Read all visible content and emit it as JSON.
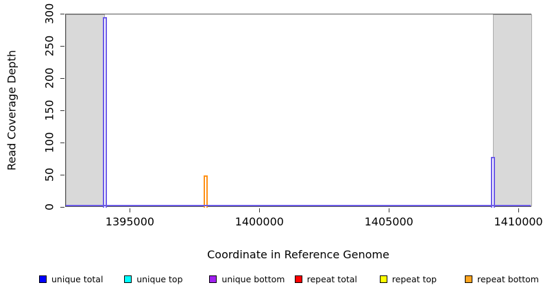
{
  "chart_data": {
    "type": "line",
    "title": "",
    "xlabel": "Coordinate in Reference Genome",
    "ylabel": "Read Coverage Depth",
    "xlim": [
      1392500,
      1410500
    ],
    "ylim": [
      0,
      300
    ],
    "xticks": [
      1395000,
      1400000,
      1405000,
      1410000
    ],
    "yticks": [
      0,
      50,
      100,
      150,
      200,
      250,
      300
    ],
    "grid": false,
    "legend_position": "bottom",
    "plot_border_color": "#555555",
    "shaded_regions": [
      {
        "name": "masked-region-left",
        "x_start": 1392500,
        "x_end": 1394000,
        "fill": "#D9D9D9",
        "border": "#ABABAB"
      },
      {
        "name": "masked-region-right",
        "x_start": 1409000,
        "x_end": 1410500,
        "fill": "#D9D9D9",
        "border": "#ABABAB"
      }
    ],
    "baseline": {
      "value": 0,
      "color": "#6C5BE8"
    },
    "spikes": [
      {
        "x": 1394000,
        "value": 296,
        "series": "unique coverage",
        "color": "#6C5BE8"
      },
      {
        "x": 1397900,
        "value": 50,
        "series": "repeat bottom coverage",
        "color": "#FF9015"
      },
      {
        "x": 1409000,
        "value": 79,
        "series": "unique coverage",
        "color": "#6C5BE8"
      }
    ],
    "legend": [
      {
        "label": "unique total",
        "color": "#0000FF"
      },
      {
        "label": "unique top",
        "color": "#00FFFF"
      },
      {
        "label": "unique bottom",
        "color": "#A020F0"
      },
      {
        "label": "repeat total",
        "color": "#FF0000"
      },
      {
        "label": "repeat top",
        "color": "#FFFF00"
      },
      {
        "label": "repeat bottom",
        "color": "#FFA520"
      }
    ]
  }
}
